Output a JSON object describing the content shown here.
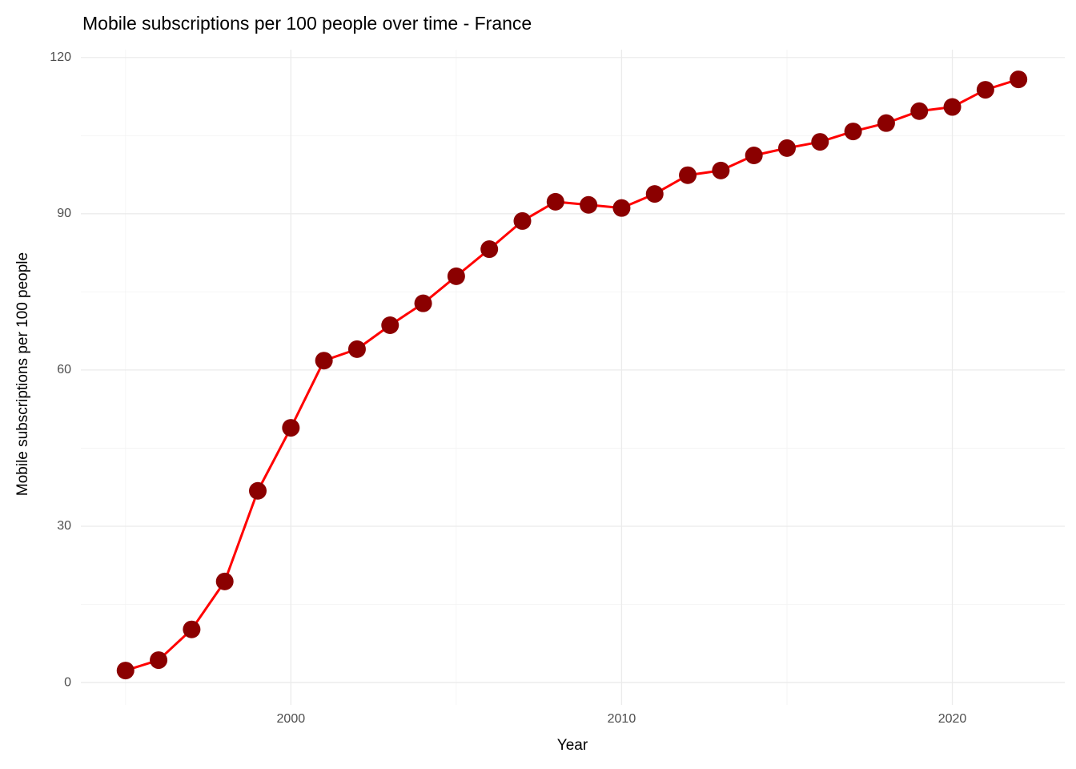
{
  "chart_data": {
    "type": "line",
    "title": "Mobile subscriptions per 100 people over time - France",
    "x_label": "Year",
    "y_label": "Mobile subscriptions per 100 people",
    "x": [
      1995,
      1996,
      1997,
      1998,
      1999,
      2000,
      2001,
      2002,
      2003,
      2004,
      2005,
      2006,
      2007,
      2008,
      2009,
      2010,
      2011,
      2012,
      2013,
      2014,
      2015,
      2016,
      2017,
      2018,
      2019,
      2020,
      2021,
      2022
    ],
    "y": [
      2.3,
      4.3,
      10.2,
      19.4,
      36.8,
      48.9,
      61.8,
      64.0,
      68.6,
      72.8,
      78.0,
      83.2,
      88.6,
      92.3,
      91.7,
      91.1,
      93.8,
      97.4,
      98.3,
      101.2,
      102.6,
      103.8,
      105.8,
      107.4,
      109.7,
      110.5,
      113.8,
      115.8
    ],
    "color": "#ff0000",
    "marker_color": "#8b0000",
    "xlim": [
      1993.65,
      2023.4
    ],
    "ylim": [
      -4.3,
      121.5
    ],
    "xticks": [
      2000,
      2010,
      2020
    ],
    "yticks": [
      0,
      30,
      60,
      90,
      120
    ],
    "x_minor_ticks": [
      1995,
      2005,
      2015
    ],
    "y_minor_ticks": [
      15,
      45,
      75,
      105
    ],
    "grid": true
  }
}
